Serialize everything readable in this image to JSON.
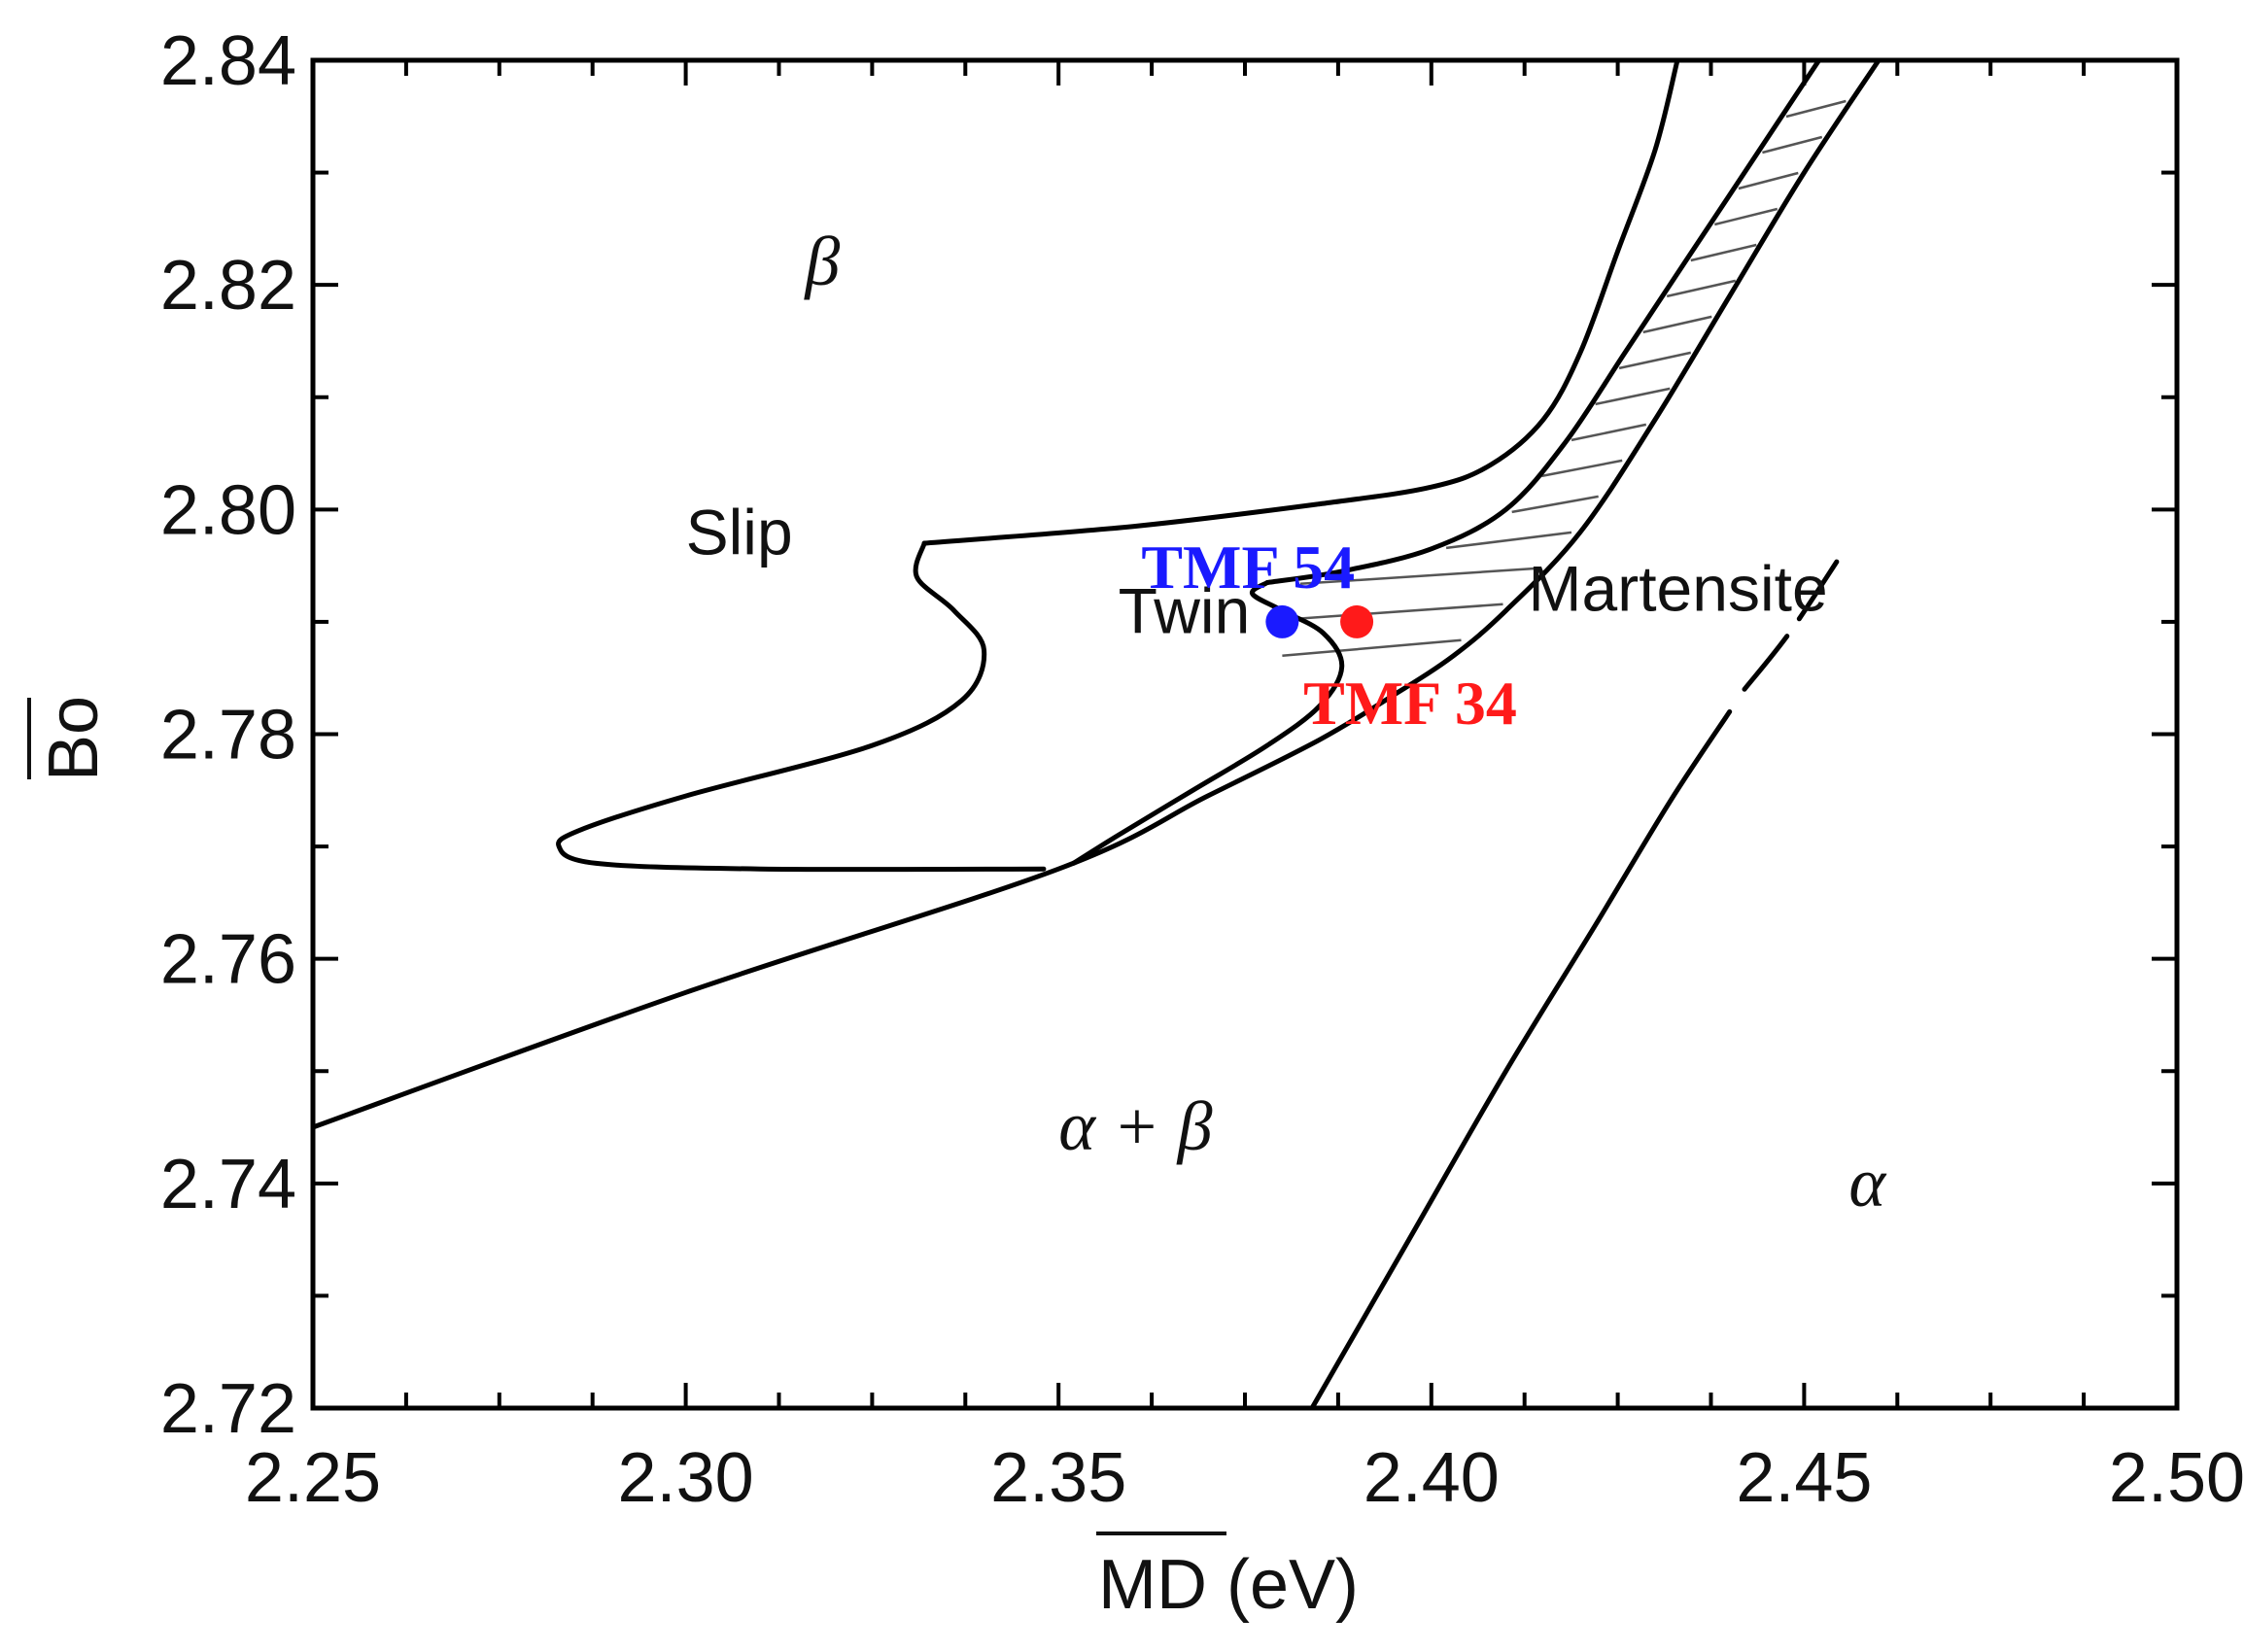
{
  "chart_data": {
    "type": "scatter",
    "title": "",
    "xlabel": "MD (eV)",
    "ylabel": "Bo",
    "xlim": [
      2.25,
      2.5
    ],
    "ylim": [
      2.72,
      2.84
    ],
    "x_ticks": [
      "2.25",
      "2.30",
      "2.35",
      "2.40",
      "2.45",
      "2.50"
    ],
    "y_ticks": [
      "2.72",
      "2.74",
      "2.76",
      "2.78",
      "2.80",
      "2.82",
      "2.84"
    ],
    "grid": false,
    "regions": [
      {
        "label": "β",
        "x": 2.316,
        "y": 2.82
      },
      {
        "label": "Slip",
        "x": 2.3,
        "y": 2.796
      },
      {
        "label": "Twin",
        "x": 2.358,
        "y": 2.789
      },
      {
        "label": "Martensite",
        "x": 2.413,
        "y": 2.791
      },
      {
        "label": "α + β",
        "x": 2.35,
        "y": 2.743
      },
      {
        "label": "α",
        "x": 2.456,
        "y": 2.738
      }
    ],
    "points": [
      {
        "name": "TMF 54",
        "x": 2.38,
        "y": 2.79,
        "color": "#1a1aff"
      },
      {
        "name": "TMF 34",
        "x": 2.39,
        "y": 2.79,
        "color": "#ff1a1a"
      }
    ],
    "boundaries": [
      {
        "name": "alpha-beta lower boundary",
        "points": [
          [
            2.25,
            2.745
          ],
          [
            2.3,
            2.757
          ],
          [
            2.35,
            2.768
          ],
          [
            2.37,
            2.7745
          ],
          [
            2.385,
            2.7795
          ],
          [
            2.395,
            2.7835
          ],
          [
            2.403,
            2.787
          ],
          [
            2.41,
            2.791
          ],
          [
            2.42,
            2.798
          ],
          [
            2.43,
            2.808
          ],
          [
            2.44,
            2.819
          ],
          [
            2.45,
            2.83
          ],
          [
            2.46,
            2.84
          ]
        ]
      },
      {
        "name": "martensite upper boundary",
        "points": [
          [
            2.378,
            2.7935
          ],
          [
            2.388,
            2.7945
          ],
          [
            2.4,
            2.7965
          ],
          [
            2.41,
            2.8
          ],
          [
            2.418,
            2.806
          ],
          [
            2.426,
            2.814
          ],
          [
            2.434,
            2.822
          ],
          [
            2.443,
            2.831
          ],
          [
            2.452,
            2.84
          ]
        ]
      },
      {
        "name": "beta-slip boundary",
        "points": [
          [
            2.332,
            2.797
          ],
          [
            2.36,
            2.7985
          ],
          [
            2.385,
            2.8005
          ],
          [
            2.4,
            2.802
          ],
          [
            2.408,
            2.804
          ],
          [
            2.415,
            2.808
          ],
          [
            2.42,
            2.814
          ],
          [
            2.425,
            2.823
          ],
          [
            2.43,
            2.832
          ],
          [
            2.433,
            2.84
          ]
        ]
      },
      {
        "name": "slip-twin loop",
        "points": [
          [
            2.332,
            2.797
          ],
          [
            2.331,
            2.794
          ],
          [
            2.336,
            2.791
          ],
          [
            2.34,
            2.7875
          ],
          [
            2.337,
            2.783
          ],
          [
            2.325,
            2.779
          ],
          [
            2.3,
            2.7745
          ],
          [
            2.286,
            2.7715
          ],
          [
            2.283,
            2.77
          ],
          [
            2.288,
            2.7685
          ],
          [
            2.31,
            2.768
          ],
          [
            2.348,
            2.768
          ]
        ]
      },
      {
        "name": "twin-martensite boundary",
        "points": [
          [
            2.378,
            2.7935
          ],
          [
            2.376,
            2.7925
          ],
          [
            2.38,
            2.791
          ],
          [
            2.3855,
            2.789
          ],
          [
            2.388,
            2.786
          ],
          [
            2.385,
            2.7825
          ],
          [
            2.378,
            2.779
          ],
          [
            2.368,
            2.775
          ],
          [
            2.358,
            2.771
          ],
          [
            2.352,
            2.7685
          ]
        ]
      },
      {
        "name": "alpha boundary lower",
        "points": [
          [
            2.384,
            2.72
          ],
          [
            2.397,
            2.735
          ],
          [
            2.41,
            2.75
          ],
          [
            2.422,
            2.763
          ],
          [
            2.432,
            2.774
          ],
          [
            2.44,
            2.782
          ]
        ]
      },
      {
        "name": "alpha boundary upper dashed",
        "points": [
          [
            2.442,
            2.784
          ],
          [
            2.448,
            2.789
          ],
          [
            2.455,
            2.796
          ]
        ]
      }
    ]
  }
}
